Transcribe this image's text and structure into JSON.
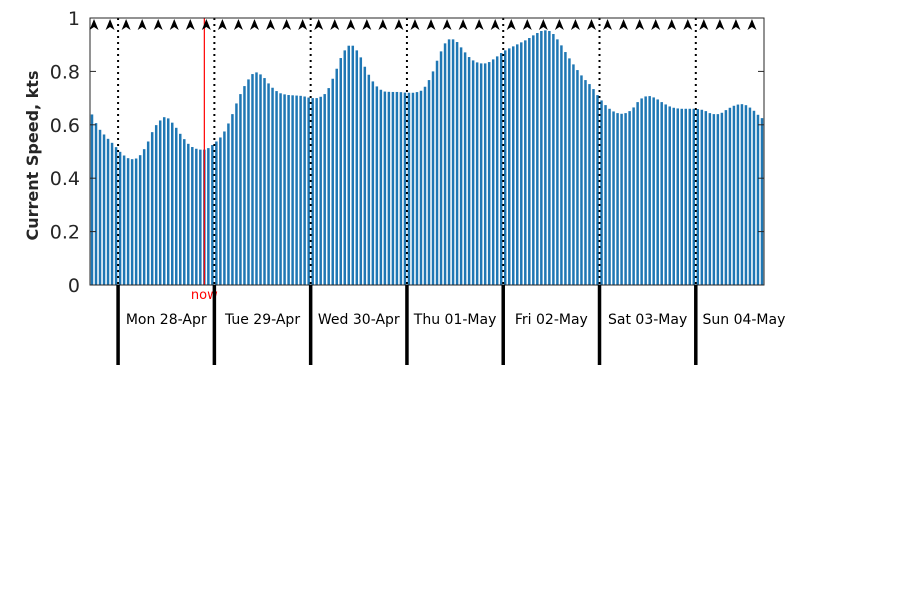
{
  "colors": {
    "bar": "#1f77b4",
    "now": "#ff0000",
    "axis": "#262626",
    "dayline": "#000000"
  },
  "chart_data": {
    "type": "bar",
    "ylabel": "Current Speed, kts",
    "ylim": [
      0,
      1
    ],
    "yticks": [
      0,
      0.2,
      0.4,
      0.6,
      0.8,
      1
    ],
    "xlim_hours": [
      0,
      168
    ],
    "x_start_label": "Mon 28-Apr",
    "days": [
      "Mon 28-Apr",
      "Tue 29-Apr",
      "Wed 30-Apr",
      "Thu 01-May",
      "Fri 02-May",
      "Sat 03-May",
      "Sun 04-May"
    ],
    "day_boundaries_hours": [
      7,
      31,
      55,
      79,
      103,
      127,
      151
    ],
    "now_hour": 28.5,
    "now_label": "now",
    "direction_arrows": "north",
    "keyframes": [
      [
        0,
        0.655
      ],
      [
        2,
        0.59
      ],
      [
        4,
        0.555
      ],
      [
        6,
        0.525
      ],
      [
        8,
        0.49
      ],
      [
        10,
        0.47
      ],
      [
        12,
        0.475
      ],
      [
        14,
        0.52
      ],
      [
        16,
        0.59
      ],
      [
        18,
        0.625
      ],
      [
        19,
        0.632
      ],
      [
        21,
        0.6
      ],
      [
        23,
        0.555
      ],
      [
        25,
        0.52
      ],
      [
        27,
        0.507
      ],
      [
        29,
        0.507
      ],
      [
        31,
        0.53
      ],
      [
        33,
        0.56
      ],
      [
        35,
        0.62
      ],
      [
        37,
        0.7
      ],
      [
        39,
        0.76
      ],
      [
        41,
        0.8
      ],
      [
        43,
        0.785
      ],
      [
        45,
        0.745
      ],
      [
        47,
        0.72
      ],
      [
        49,
        0.712
      ],
      [
        51,
        0.71
      ],
      [
        53,
        0.708
      ],
      [
        55,
        0.7
      ],
      [
        57,
        0.7
      ],
      [
        59,
        0.72
      ],
      [
        61,
        0.79
      ],
      [
        63,
        0.87
      ],
      [
        65,
        0.905
      ],
      [
        67,
        0.87
      ],
      [
        69,
        0.8
      ],
      [
        71,
        0.75
      ],
      [
        73,
        0.725
      ],
      [
        75,
        0.723
      ],
      [
        77,
        0.723
      ],
      [
        79,
        0.72
      ],
      [
        81,
        0.72
      ],
      [
        83,
        0.73
      ],
      [
        85,
        0.78
      ],
      [
        87,
        0.86
      ],
      [
        89,
        0.92
      ],
      [
        91,
        0.92
      ],
      [
        93,
        0.88
      ],
      [
        95,
        0.845
      ],
      [
        97,
        0.83
      ],
      [
        99,
        0.83
      ],
      [
        101,
        0.85
      ],
      [
        103,
        0.875
      ],
      [
        105,
        0.89
      ],
      [
        107,
        0.905
      ],
      [
        109,
        0.92
      ],
      [
        111,
        0.94
      ],
      [
        113,
        0.955
      ],
      [
        115,
        0.95
      ],
      [
        117,
        0.91
      ],
      [
        119,
        0.86
      ],
      [
        121,
        0.815
      ],
      [
        123,
        0.775
      ],
      [
        125,
        0.745
      ],
      [
        127,
        0.7
      ],
      [
        129,
        0.665
      ],
      [
        131,
        0.645
      ],
      [
        133,
        0.64
      ],
      [
        135,
        0.655
      ],
      [
        137,
        0.695
      ],
      [
        139,
        0.71
      ],
      [
        141,
        0.7
      ],
      [
        143,
        0.68
      ],
      [
        145,
        0.665
      ],
      [
        147,
        0.66
      ],
      [
        149,
        0.66
      ],
      [
        151,
        0.66
      ],
      [
        153,
        0.655
      ],
      [
        155,
        0.64
      ],
      [
        157,
        0.64
      ],
      [
        159,
        0.66
      ],
      [
        161,
        0.675
      ],
      [
        163,
        0.678
      ],
      [
        165,
        0.66
      ],
      [
        167,
        0.63
      ],
      [
        168,
        0.62
      ]
    ]
  }
}
